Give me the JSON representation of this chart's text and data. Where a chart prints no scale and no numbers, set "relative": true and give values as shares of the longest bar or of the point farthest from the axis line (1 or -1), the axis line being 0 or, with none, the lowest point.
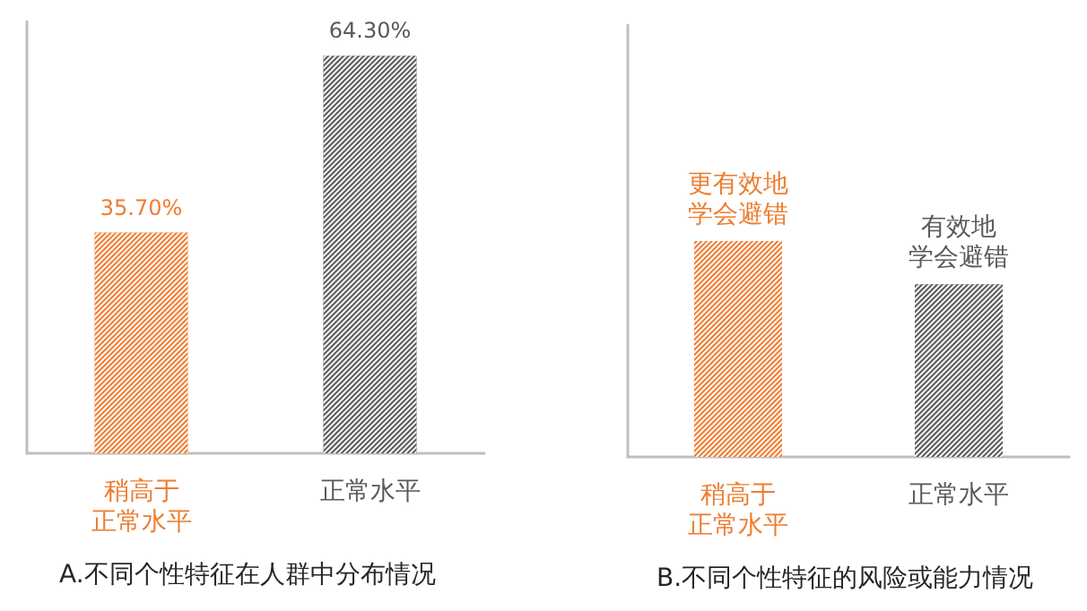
{
  "chart_data": [
    {
      "type": "bar",
      "title": "A.不同个性特征在人群中分布情况",
      "categories": [
        "稍高于正常水平",
        "正常水平"
      ],
      "values": [
        35.7,
        64.3
      ],
      "colors": [
        "#ed7d31",
        "#595959"
      ],
      "value_labels": [
        "35.70%",
        "64.30%"
      ],
      "tick_labels": "x"
    },
    {
      "type": "bar",
      "title": "B.不同个性特征的风险或能力情况",
      "categories": [
        "稍高于正常水平",
        "正常水平"
      ],
      "values": [
        1,
        0.8
      ],
      "colors": [
        "#ed7d31",
        "#595959"
      ],
      "annotations": [
        {
          "text": "更有效地学会避错",
          "x": "稍高于正常水平",
          "y": 1
        },
        {
          "text": "有效地学会避错",
          "x": "正常水平",
          "y": 0.8
        }
      ],
      "relative": true
    }
  ]
}
